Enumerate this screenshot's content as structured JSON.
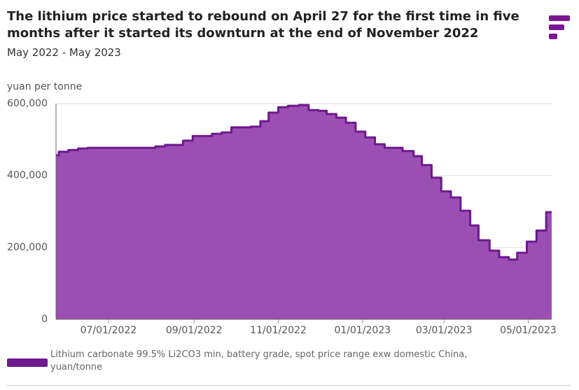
{
  "chart_data": {
    "type": "area",
    "title": "The lithium price started to rebound on April 27 for the first time in five months after it started its downturn at the end of November 2022",
    "subtitle": "May 2022 - May 2023",
    "y_label": "yuan per tonne",
    "step": true,
    "grid": true,
    "x": [
      "2022-05-24",
      "2022-05-26",
      "2022-06-02",
      "2022-06-09",
      "2022-06-16",
      "2022-08-04",
      "2022-08-11",
      "2022-08-24",
      "2022-08-31",
      "2022-09-14",
      "2022-09-21",
      "2022-09-28",
      "2022-10-12",
      "2022-10-19",
      "2022-10-25",
      "2022-11-01",
      "2022-11-08",
      "2022-11-16",
      "2022-11-23",
      "2022-11-30",
      "2022-12-06",
      "2022-12-13",
      "2022-12-20",
      "2022-12-27",
      "2023-01-03",
      "2023-01-10",
      "2023-01-17",
      "2023-01-30",
      "2023-02-07",
      "2023-02-13",
      "2023-02-20",
      "2023-02-27",
      "2023-03-06",
      "2023-03-13",
      "2023-03-20",
      "2023-03-26",
      "2023-04-03",
      "2023-04-10",
      "2023-04-17",
      "2023-04-23",
      "2023-04-30",
      "2023-05-07",
      "2023-05-14"
    ],
    "series": [
      {
        "name": "Lithium carbonate 99.5% Li2CO3 min, battery grade, spot price range exw domestic China, yuan/tonne",
        "color": "#6c1a8c",
        "fill": "#9b4fb3",
        "values": [
          456000,
          466000,
          471000,
          475000,
          477000,
          481000,
          485000,
          497000,
          510000,
          516000,
          520000,
          534000,
          536000,
          551000,
          575000,
          590000,
          594000,
          596000,
          582000,
          580000,
          571000,
          561000,
          547000,
          522000,
          506000,
          487000,
          477000,
          468000,
          454000,
          429000,
          394000,
          356000,
          339000,
          302000,
          261000,
          220000,
          191000,
          173000,
          166000,
          185000,
          216000,
          247000,
          298000
        ]
      }
    ],
    "xlim": [
      "2022-05-24",
      "2023-05-18"
    ],
    "xticks": [
      {
        "value": "2022-07-01",
        "label": "07/01/2022"
      },
      {
        "value": "2022-09-01",
        "label": "09/01/2022"
      },
      {
        "value": "2022-11-01",
        "label": "11/01/2022"
      },
      {
        "value": "2023-01-01",
        "label": "01/01/2023"
      },
      {
        "value": "2023-03-01",
        "label": "03/01/2023"
      },
      {
        "value": "2023-05-01",
        "label": "05/01/2023"
      }
    ],
    "ylim": [
      0,
      600000
    ],
    "yticks": [
      0,
      {
        "value": 200000,
        "label": "200,000"
      },
      {
        "value": 400000,
        "label": "400,000"
      },
      {
        "value": 600000,
        "label": "600,000"
      }
    ]
  }
}
